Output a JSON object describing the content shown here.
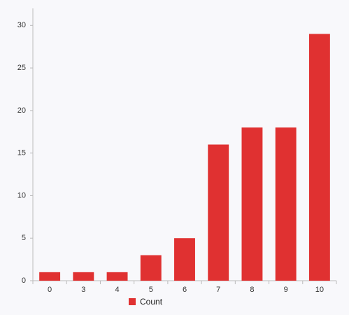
{
  "chart_data": {
    "type": "bar",
    "categories": [
      "0",
      "3",
      "4",
      "5",
      "6",
      "7",
      "8",
      "9",
      "10"
    ],
    "series": [
      {
        "name": "Count",
        "color": "#e03131",
        "values": [
          1,
          1,
          1,
          3,
          5,
          16,
          18,
          18,
          29
        ]
      }
    ],
    "ylim": [
      0,
      32
    ],
    "yticks": [
      0,
      5,
      10,
      15,
      20,
      25,
      30
    ],
    "grid": false,
    "legend": "bottom"
  }
}
